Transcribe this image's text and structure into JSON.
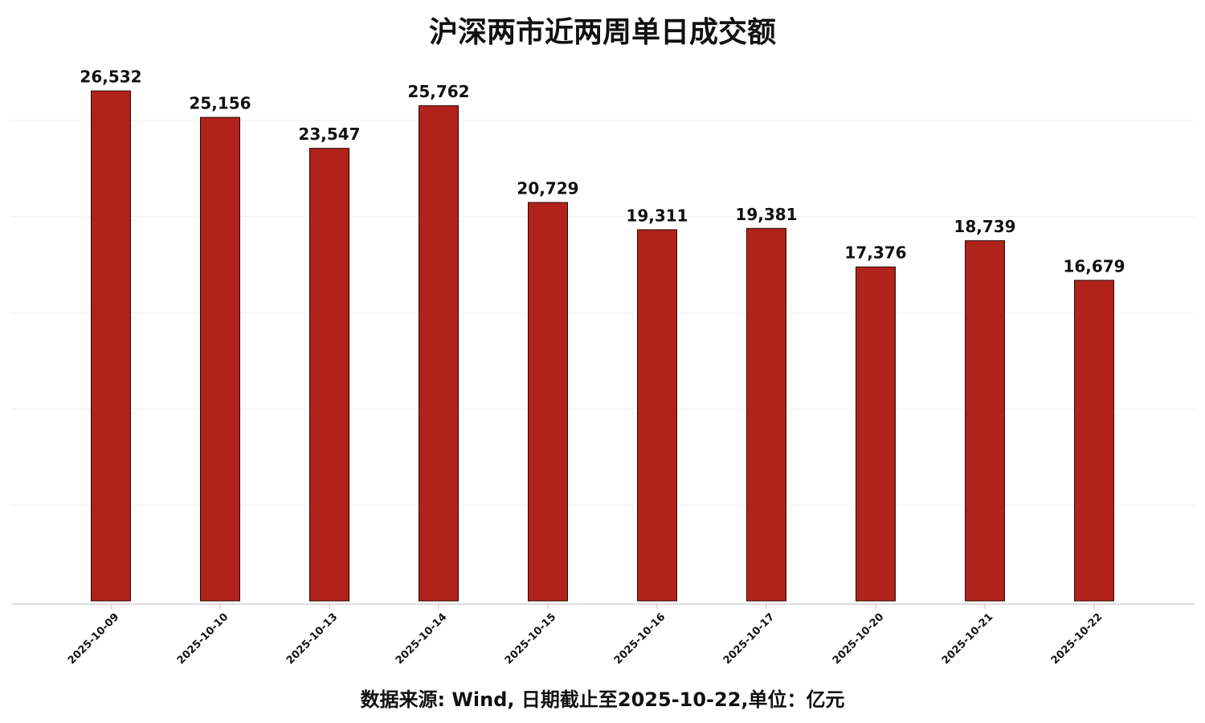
{
  "chart_data": {
    "type": "bar",
    "title": "沪深两市近两周单日成交额",
    "categories": [
      "2025-10-09",
      "2025-10-10",
      "2025-10-13",
      "2025-10-14",
      "2025-10-15",
      "2025-10-16",
      "2025-10-17",
      "2025-10-20",
      "2025-10-21",
      "2025-10-22"
    ],
    "values": [
      26532,
      25156,
      23547,
      25762,
      20729,
      19311,
      19381,
      17376,
      18739,
      16679
    ],
    "value_labels": [
      "26,532",
      "25,156",
      "23,547",
      "25,762",
      "20,729",
      "19,311",
      "19,381",
      "17,376",
      "18,739",
      "16,679"
    ],
    "color": "#b0221a",
    "ylim": [
      0,
      27500
    ],
    "yticks": [
      0,
      5000,
      10000,
      15000,
      20000,
      25000
    ],
    "grid": true,
    "source": "数据来源: Wind, 日期截止至2025-10-22,单位：亿元"
  }
}
